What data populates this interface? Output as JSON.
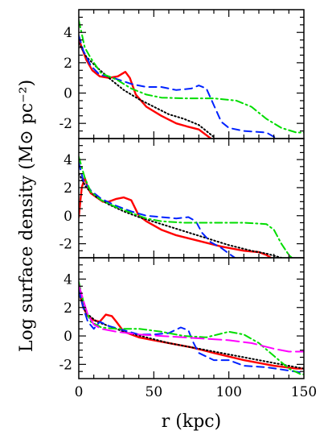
{
  "chart_data": {
    "type": "line",
    "xlabel": "r (kpc)",
    "ylabel": "Log surface density (M⊙ pc⁻²)",
    "xlim": [
      0,
      150
    ],
    "ylim": [
      -3,
      5.5
    ],
    "x_ticks": [
      0,
      50,
      100,
      150
    ],
    "y_ticks": [
      -2,
      0,
      2,
      4
    ],
    "panels": [
      {
        "series": [
          {
            "color": "#ff0000",
            "style": "solid",
            "points": [
              [
                0,
                3.6
              ],
              [
                2,
                3.0
              ],
              [
                5,
                2.2
              ],
              [
                9,
                1.5
              ],
              [
                14,
                1.1
              ],
              [
                20,
                1.0
              ],
              [
                26,
                1.1
              ],
              [
                31,
                1.4
              ],
              [
                34,
                1.0
              ],
              [
                38,
                -0.1
              ],
              [
                45,
                -0.9
              ],
              [
                55,
                -1.5
              ],
              [
                65,
                -2.0
              ],
              [
                72,
                -2.2
              ],
              [
                80,
                -2.4
              ],
              [
                88,
                -3.0
              ]
            ]
          },
          {
            "color": "#000000",
            "style": "dotted",
            "points": [
              [
                0,
                3.3
              ],
              [
                5,
                2.4
              ],
              [
                12,
                1.7
              ],
              [
                20,
                1.0
              ],
              [
                30,
                0.2
              ],
              [
                40,
                -0.4
              ],
              [
                50,
                -0.9
              ],
              [
                60,
                -1.4
              ],
              [
                70,
                -1.7
              ],
              [
                80,
                -2.1
              ],
              [
                85,
                -2.5
              ],
              [
                90,
                -2.9
              ]
            ]
          },
          {
            "color": "#0022ff",
            "style": "dashed",
            "points": [
              [
                0,
                3.8
              ],
              [
                3,
                2.8
              ],
              [
                8,
                1.8
              ],
              [
                14,
                1.2
              ],
              [
                20,
                1.1
              ],
              [
                26,
                0.9
              ],
              [
                35,
                0.6
              ],
              [
                45,
                0.4
              ],
              [
                55,
                0.4
              ],
              [
                65,
                0.2
              ],
              [
                75,
                0.3
              ],
              [
                80,
                0.5
              ],
              [
                85,
                0.3
              ],
              [
                90,
                -0.8
              ],
              [
                95,
                -1.9
              ],
              [
                100,
                -2.3
              ],
              [
                110,
                -2.5
              ],
              [
                125,
                -2.6
              ],
              [
                132,
                -3.0
              ]
            ]
          },
          {
            "color": "#00dd00",
            "style": "dashdot",
            "points": [
              [
                0,
                4.8
              ],
              [
                4,
                3.0
              ],
              [
                8,
                2.3
              ],
              [
                15,
                1.3
              ],
              [
                25,
                0.9
              ],
              [
                35,
                0.3
              ],
              [
                45,
                -0.1
              ],
              [
                55,
                -0.3
              ],
              [
                70,
                -0.35
              ],
              [
                90,
                -0.35
              ],
              [
                105,
                -0.5
              ],
              [
                115,
                -0.9
              ],
              [
                125,
                -1.7
              ],
              [
                135,
                -2.3
              ],
              [
                145,
                -2.6
              ],
              [
                150,
                -2.6
              ]
            ]
          }
        ]
      },
      {
        "series": [
          {
            "color": "#ff0000",
            "style": "solid",
            "points": [
              [
                0,
                -0.1
              ],
              [
                1,
                1.0
              ],
              [
                2,
                2.0
              ],
              [
                4,
                2.7
              ],
              [
                6,
                2.0
              ],
              [
                8,
                1.6
              ],
              [
                12,
                1.3
              ],
              [
                16,
                1.0
              ],
              [
                20,
                1.0
              ],
              [
                25,
                1.2
              ],
              [
                30,
                1.3
              ],
              [
                35,
                1.1
              ],
              [
                40,
                0.0
              ],
              [
                45,
                -0.4
              ],
              [
                55,
                -1.0
              ],
              [
                65,
                -1.4
              ],
              [
                80,
                -1.8
              ],
              [
                95,
                -2.2
              ],
              [
                110,
                -2.5
              ],
              [
                120,
                -2.6
              ],
              [
                125,
                -2.8
              ],
              [
                128,
                -3.0
              ]
            ]
          },
          {
            "color": "#000000",
            "style": "dotted",
            "points": [
              [
                0,
                3.0
              ],
              [
                5,
                2.0
              ],
              [
                12,
                1.3
              ],
              [
                20,
                0.8
              ],
              [
                30,
                0.3
              ],
              [
                40,
                -0.1
              ],
              [
                55,
                -0.6
              ],
              [
                70,
                -1.1
              ],
              [
                85,
                -1.6
              ],
              [
                100,
                -2.1
              ],
              [
                115,
                -2.5
              ],
              [
                125,
                -2.7
              ],
              [
                135,
                -3.0
              ]
            ]
          },
          {
            "color": "#0022ff",
            "style": "dashed",
            "points": [
              [
                0,
                3.8
              ],
              [
                3,
                2.5
              ],
              [
                8,
                1.8
              ],
              [
                15,
                1.2
              ],
              [
                25,
                0.7
              ],
              [
                35,
                0.3
              ],
              [
                45,
                0.0
              ],
              [
                55,
                -0.1
              ],
              [
                65,
                -0.2
              ],
              [
                73,
                -0.1
              ],
              [
                78,
                -0.4
              ],
              [
                82,
                -1.2
              ],
              [
                88,
                -1.9
              ],
              [
                95,
                -2.3
              ],
              [
                100,
                -2.7
              ],
              [
                104,
                -3.0
              ]
            ]
          },
          {
            "color": "#00dd00",
            "style": "dashdot",
            "points": [
              [
                0,
                4.2
              ],
              [
                4,
                2.7
              ],
              [
                8,
                1.7
              ],
              [
                15,
                1.1
              ],
              [
                25,
                0.6
              ],
              [
                35,
                0.2
              ],
              [
                45,
                -0.2
              ],
              [
                55,
                -0.4
              ],
              [
                70,
                -0.5
              ],
              [
                90,
                -0.5
              ],
              [
                110,
                -0.5
              ],
              [
                125,
                -0.6
              ],
              [
                130,
                -1.0
              ],
              [
                135,
                -2.0
              ],
              [
                140,
                -2.8
              ],
              [
                142,
                -3.0
              ]
            ]
          }
        ]
      },
      {
        "series": [
          {
            "color": "#ff0000",
            "style": "solid",
            "points": [
              [
                0,
                3.2
              ],
              [
                3,
                2.0
              ],
              [
                6,
                1.4
              ],
              [
                10,
                1.1
              ],
              [
                14,
                1.0
              ],
              [
                18,
                1.5
              ],
              [
                22,
                1.4
              ],
              [
                25,
                1.0
              ],
              [
                30,
                0.3
              ],
              [
                40,
                -0.1
              ],
              [
                50,
                -0.3
              ],
              [
                60,
                -0.5
              ],
              [
                75,
                -0.8
              ],
              [
                90,
                -1.2
              ],
              [
                110,
                -1.7
              ],
              [
                130,
                -2.1
              ],
              [
                145,
                -2.3
              ],
              [
                150,
                -2.3
              ]
            ]
          },
          {
            "color": "#000000",
            "style": "dotted",
            "points": [
              [
                0,
                3.0
              ],
              [
                5,
                1.6
              ],
              [
                12,
                1.0
              ],
              [
                20,
                0.7
              ],
              [
                30,
                0.3
              ],
              [
                45,
                -0.1
              ],
              [
                60,
                -0.5
              ],
              [
                80,
                -0.9
              ],
              [
                100,
                -1.3
              ],
              [
                120,
                -1.7
              ],
              [
                135,
                -2.0
              ],
              [
                150,
                -2.3
              ]
            ]
          },
          {
            "color": "#0022ff",
            "style": "dashed",
            "points": [
              [
                0,
                3.2
              ],
              [
                3,
                2.0
              ],
              [
                6,
                1.0
              ],
              [
                10,
                0.5
              ],
              [
                14,
                1.0
              ],
              [
                20,
                0.7
              ],
              [
                30,
                0.4
              ],
              [
                40,
                0.1
              ],
              [
                50,
                0.1
              ],
              [
                60,
                0.2
              ],
              [
                68,
                0.6
              ],
              [
                73,
                0.4
              ],
              [
                76,
                -0.4
              ],
              [
                80,
                -1.2
              ],
              [
                90,
                -1.7
              ],
              [
                100,
                -1.7
              ],
              [
                110,
                -2.1
              ],
              [
                125,
                -2.2
              ],
              [
                150,
                -2.6
              ]
            ]
          },
          {
            "color": "#00dd00",
            "style": "dashdot",
            "points": [
              [
                0,
                3.8
              ],
              [
                4,
                2.0
              ],
              [
                8,
                1.0
              ],
              [
                15,
                0.6
              ],
              [
                25,
                0.5
              ],
              [
                40,
                0.5
              ],
              [
                55,
                0.3
              ],
              [
                70,
                0.0
              ],
              [
                85,
                -0.1
              ],
              [
                100,
                0.3
              ],
              [
                110,
                0.1
              ],
              [
                120,
                -0.5
              ],
              [
                130,
                -1.4
              ],
              [
                140,
                -2.3
              ],
              [
                148,
                -2.7
              ],
              [
                150,
                -2.7
              ]
            ]
          },
          {
            "color": "#ff00ff",
            "style": "longdash",
            "points": [
              [
                0,
                3.6
              ],
              [
                3,
                2.5
              ],
              [
                6,
                1.5
              ],
              [
                10,
                0.8
              ],
              [
                15,
                0.5
              ],
              [
                25,
                0.3
              ],
              [
                40,
                0.1
              ],
              [
                55,
                0.0
              ],
              [
                70,
                -0.1
              ],
              [
                85,
                -0.2
              ],
              [
                100,
                -0.3
              ],
              [
                115,
                -0.5
              ],
              [
                130,
                -0.9
              ],
              [
                140,
                -1.1
              ],
              [
                150,
                -1.1
              ]
            ]
          }
        ]
      }
    ]
  }
}
